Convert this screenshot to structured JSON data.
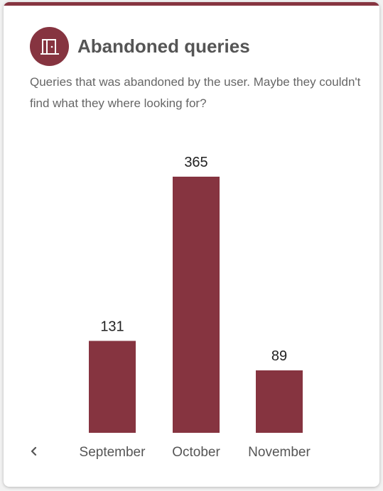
{
  "card": {
    "title": "Abandoned queries",
    "description": "Queries that was abandoned by the user. Maybe they couldn't find what they where looking for?",
    "icon": "door-icon",
    "accent_color": "#863440"
  },
  "navigation": {
    "prev_icon": "chevron-left-icon"
  },
  "chart_data": {
    "type": "bar",
    "categories": [
      "September",
      "October",
      "November"
    ],
    "values": [
      131,
      365,
      89
    ],
    "title": "",
    "xlabel": "",
    "ylabel": "",
    "ylim": [
      0,
      365
    ],
    "grid": false,
    "legend": "none",
    "bar_color": "#863440"
  }
}
